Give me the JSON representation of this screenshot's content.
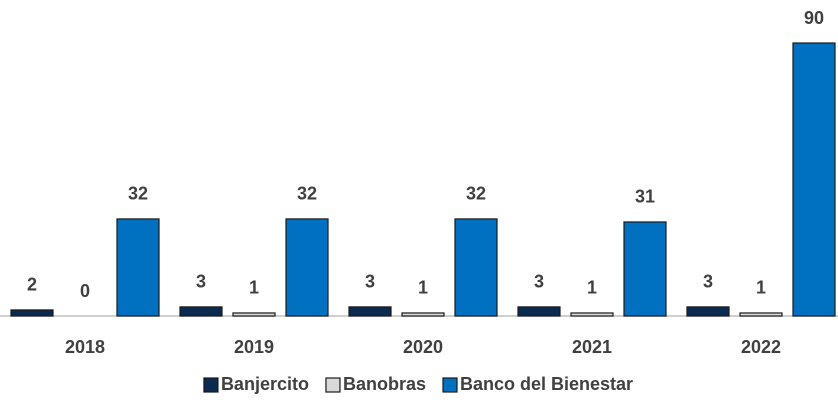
{
  "chart_data": {
    "type": "bar",
    "categories": [
      "2018",
      "2019",
      "2020",
      "2021",
      "2022"
    ],
    "series": [
      {
        "name": "Banjercito",
        "color": "#0b2a4f",
        "values": [
          2,
          3,
          3,
          3,
          3
        ]
      },
      {
        "name": "Banobras",
        "color": "#d9d9d9",
        "values": [
          0,
          1,
          1,
          1,
          1
        ]
      },
      {
        "name": "Banco del Bienestar",
        "color": "#0070c0",
        "values": [
          32,
          32,
          32,
          31,
          90
        ]
      }
    ],
    "legend": "bottom"
  }
}
